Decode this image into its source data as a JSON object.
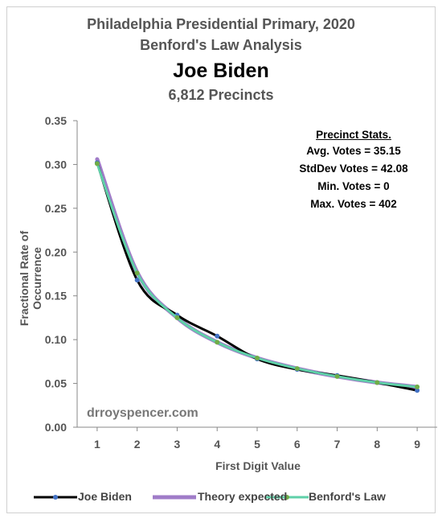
{
  "header": {
    "line1": "Philadelphia Presidential Primary, 2020",
    "line2": "Benford's Law Analysis",
    "candidate": "Joe Biden",
    "subtitle": "6,812 Precincts"
  },
  "stats_box": {
    "heading": "Precinct Stats.",
    "lines": [
      "Avg. Votes = 35.15",
      "StdDev Votes = 42.08",
      "Min. Votes = 0",
      "Max. Votes = 402"
    ]
  },
  "watermark": "drroyspencer.com",
  "chart_data": {
    "type": "line",
    "title": "Philadelphia Presidential Primary, 2020",
    "subtitle": "Benford's Law Analysis",
    "xlabel": "First Digit Value",
    "ylabel": "Fractional Rate of Occurrence",
    "x": [
      1,
      2,
      3,
      4,
      5,
      6,
      7,
      8,
      9
    ],
    "xlim": [
      0.5,
      9.5
    ],
    "ylim": [
      0,
      0.35
    ],
    "yticks": [
      "0.00",
      "0.05",
      "0.10",
      "0.15",
      "0.20",
      "0.25",
      "0.30",
      "0.35"
    ],
    "grid": false,
    "legend": "bottom",
    "series": [
      {
        "name": "Theory expected",
        "color": "#a07cc8",
        "values": [
          0.306,
          0.177,
          0.125,
          0.097,
          0.079,
          0.067,
          0.058,
          0.051,
          0.046
        ]
      },
      {
        "name": "Joe Biden",
        "color": "#000000",
        "marker_color": "#4472c4",
        "values": [
          0.302,
          0.168,
          0.128,
          0.104,
          0.078,
          0.066,
          0.059,
          0.051,
          0.042
        ]
      },
      {
        "name": "Benford's Law",
        "color": "#5fd0a8",
        "marker_color": "#70ad47",
        "values": [
          0.301,
          0.176,
          0.125,
          0.097,
          0.079,
          0.067,
          0.058,
          0.051,
          0.046
        ]
      }
    ]
  }
}
